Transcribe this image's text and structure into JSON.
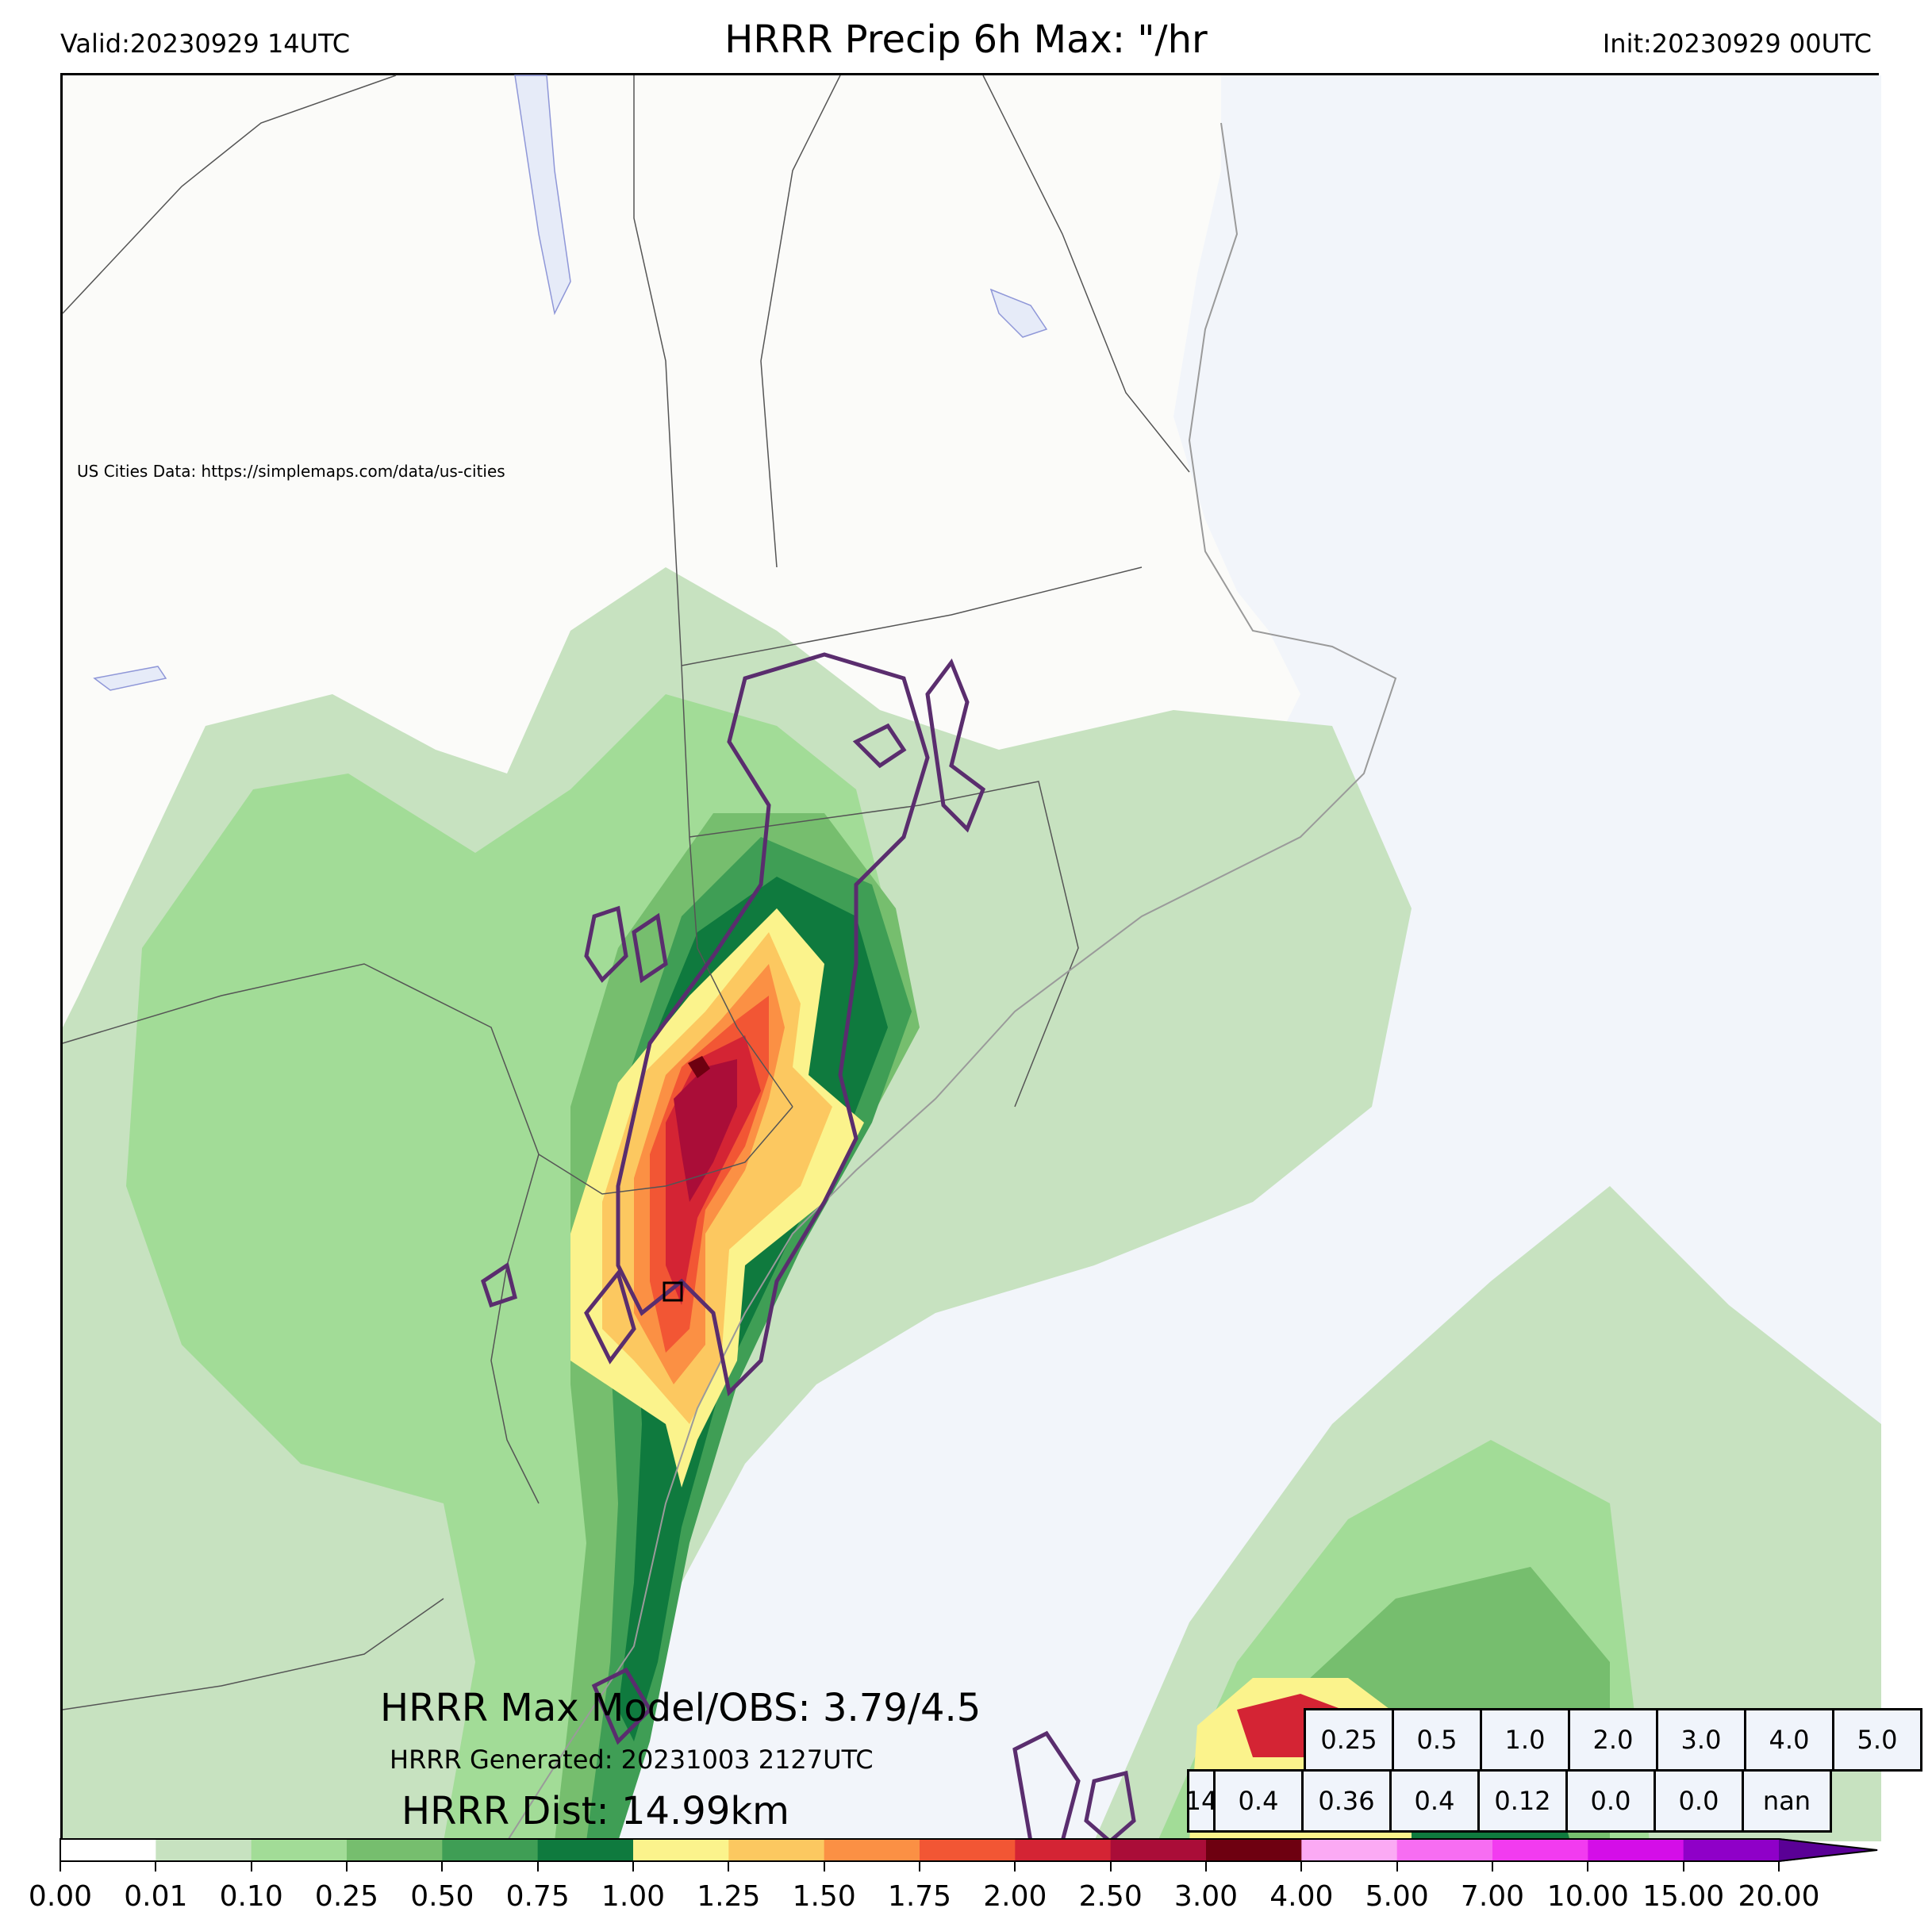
{
  "header": {
    "valid": "Valid:20230929 14UTC",
    "title": "HRRR Precip 6h Max: \"/hr",
    "init": "Init:20230929 00UTC"
  },
  "map": {
    "attribution": "US Cities Data: https://simplemaps.com/data/us-cities",
    "max_model_obs": "HRRR Max Model/OBS: 3.79/4.5",
    "generated": "HRRR Generated: 20231003 2127UTC",
    "distance": "HRRR Dist: 14.99km",
    "colors": {
      "land": "#fbfbf9",
      "ocean": "#f2f5fa",
      "contour": "#5a2d6e",
      "state_border": "#555555"
    }
  },
  "stats_table": {
    "thresholds": [
      "0.25",
      "0.5",
      "1.0",
      "2.0",
      "3.0",
      "4.0",
      "5.0"
    ],
    "values": [
      "14",
      "0.4",
      "0.36",
      "0.4",
      "0.12",
      "0.0",
      "0.0",
      "nan"
    ]
  },
  "colorbar": {
    "ticks": [
      "0.00",
      "0.01",
      "0.10",
      "0.25",
      "0.50",
      "0.75",
      "1.00",
      "1.25",
      "1.50",
      "1.75",
      "2.00",
      "2.50",
      "3.00",
      "4.00",
      "5.00",
      "7.00",
      "10.00",
      "15.00",
      "20.00"
    ],
    "colors": [
      "#ffffff",
      "#c7e2c0",
      "#a2dc97",
      "#76be6e",
      "#3f9e55",
      "#0f7a3e",
      "#fbf38c",
      "#fcc860",
      "#fb9044",
      "#f25634",
      "#d42434",
      "#aa0d38",
      "#6e0010",
      "#fbaaf4",
      "#f76df2",
      "#f23bf0",
      "#d40ee8",
      "#8f00c8"
    ],
    "extend_color": "#5a0096"
  }
}
